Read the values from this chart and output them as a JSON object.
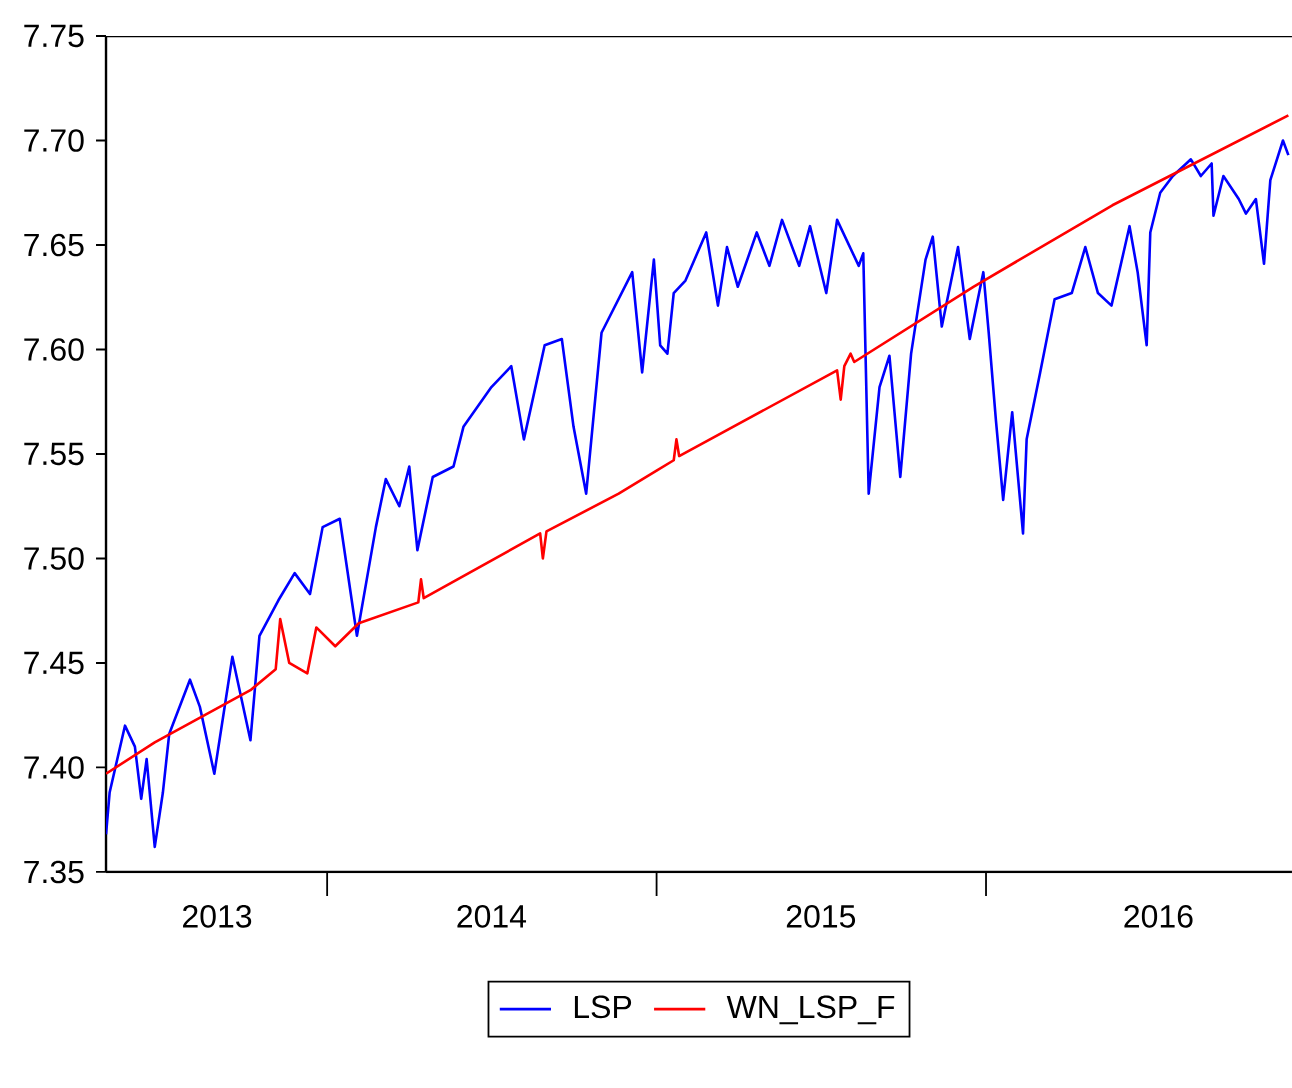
{
  "chart_data": {
    "type": "line",
    "line_style": "solid",
    "legend": "bottom",
    "grid": false,
    "xlim": [
      "2013-05-01",
      "2016-12-05"
    ],
    "xticks": [
      {
        "value": "2014-01-01",
        "label": null
      },
      {
        "value": "2015-01-01",
        "label": null
      },
      {
        "value": "2016-01-01",
        "label": null
      },
      {
        "value": "2013-09-01",
        "label": "2013"
      },
      {
        "value": "2014-07-02",
        "label": "2014"
      },
      {
        "value": "2015-07-02",
        "label": "2015"
      },
      {
        "value": "2016-07-10",
        "label": "2016"
      }
    ],
    "ylim": [
      7.35,
      7.75
    ],
    "yticks": [
      7.35,
      {
        "value": 7.4,
        "label": "7.40"
      },
      7.45,
      {
        "value": 7.5,
        "label": "7.50"
      },
      7.55,
      {
        "value": 7.6,
        "label": "7.60"
      },
      7.65,
      {
        "value": 7.7,
        "label": "7.70"
      },
      7.75
    ],
    "series": [
      {
        "name": "LSP",
        "color": "#0000ff",
        "x": [
          "2013-05-01",
          "2013-05-05",
          "2013-05-22",
          "2013-06-02",
          "2013-06-09",
          "2013-06-15",
          "2013-06-24",
          "2013-07-03",
          "2013-07-10",
          "2013-08-02",
          "2013-08-13",
          "2013-08-29",
          "2013-09-18",
          "2013-10-08",
          "2013-10-18",
          "2013-11-08",
          "2013-11-26",
          "2013-12-13",
          "2013-12-27",
          "2014-01-15",
          "2014-02-03",
          "2014-02-24",
          "2014-03-07",
          "2014-03-22",
          "2014-04-02",
          "2014-04-11",
          "2014-04-28",
          "2014-05-21",
          "2014-06-01",
          "2014-07-02",
          "2014-07-24",
          "2014-08-07",
          "2014-08-30",
          "2014-09-18",
          "2014-10-01",
          "2014-10-15",
          "2014-11-01",
          "2014-12-05",
          "2014-12-16",
          "2014-12-29",
          "2015-01-05",
          "2015-01-13",
          "2015-01-20",
          "2015-02-02",
          "2015-02-25",
          "2015-03-10",
          "2015-03-20",
          "2015-04-01",
          "2015-04-22",
          "2015-05-06",
          "2015-05-20",
          "2015-06-08",
          "2015-06-20",
          "2015-07-08",
          "2015-07-20",
          "2015-08-13",
          "2015-08-18",
          "2015-08-24",
          "2015-09-05",
          "2015-09-16",
          "2015-09-28",
          "2015-10-10",
          "2015-10-26",
          "2015-11-03",
          "2015-11-13",
          "2015-12-01",
          "2015-12-14",
          "2015-12-29",
          "2016-01-04",
          "2016-01-12",
          "2016-01-20",
          "2016-01-30",
          "2016-02-11",
          "2016-02-15",
          "2016-03-01",
          "2016-03-17",
          "2016-04-05",
          "2016-04-20",
          "2016-05-04",
          "2016-05-19",
          "2016-06-08",
          "2016-06-17",
          "2016-06-27",
          "2016-07-01",
          "2016-07-12",
          "2016-07-26",
          "2016-08-15",
          "2016-08-26",
          "2016-09-07",
          "2016-09-09",
          "2016-09-20",
          "2016-10-07",
          "2016-10-15",
          "2016-10-26",
          "2016-11-04",
          "2016-11-11",
          "2016-11-25",
          "2016-12-01"
        ],
        "values": [
          7.368,
          7.388,
          7.42,
          7.41,
          7.385,
          7.404,
          7.362,
          7.388,
          7.416,
          7.442,
          7.429,
          7.397,
          7.453,
          7.413,
          7.463,
          7.48,
          7.493,
          7.483,
          7.515,
          7.519,
          7.463,
          7.515,
          7.538,
          7.525,
          7.544,
          7.504,
          7.539,
          7.544,
          7.563,
          7.582,
          7.592,
          7.557,
          7.602,
          7.605,
          7.563,
          7.531,
          7.608,
          7.637,
          7.589,
          7.643,
          7.602,
          7.598,
          7.627,
          7.633,
          7.656,
          7.621,
          7.649,
          7.63,
          7.656,
          7.64,
          7.662,
          7.64,
          7.659,
          7.627,
          7.662,
          7.64,
          7.646,
          7.531,
          7.582,
          7.597,
          7.539,
          7.598,
          7.643,
          7.654,
          7.611,
          7.649,
          7.605,
          7.637,
          7.608,
          7.566,
          7.528,
          7.57,
          7.512,
          7.557,
          7.589,
          7.624,
          7.627,
          7.649,
          7.627,
          7.621,
          7.659,
          7.637,
          7.602,
          7.656,
          7.675,
          7.683,
          7.691,
          7.683,
          7.689,
          7.664,
          7.683,
          7.672,
          7.665,
          7.672,
          7.641,
          7.681,
          7.7,
          7.693
        ]
      },
      {
        "name": "WN_LSP_F",
        "color": "#ff0000",
        "x": [
          "2013-05-01",
          "2013-06-24",
          "2013-10-08",
          "2013-11-05",
          "2013-11-10",
          "2013-11-20",
          "2013-12-10",
          "2013-12-20",
          "2014-01-10",
          "2014-02-05",
          "2014-04-12",
          "2014-04-15",
          "2014-04-18",
          "2014-08-25",
          "2014-08-28",
          "2014-09-01",
          "2014-11-20",
          "2015-01-01",
          "2015-01-20",
          "2015-01-23",
          "2015-01-26",
          "2015-07-20",
          "2015-07-24",
          "2015-07-28",
          "2015-08-04",
          "2015-08-08",
          "2015-12-18",
          "2016-05-20",
          "2016-12-01"
        ],
        "values": [
          7.397,
          7.412,
          7.437,
          7.447,
          7.471,
          7.45,
          7.445,
          7.467,
          7.458,
          7.469,
          7.479,
          7.49,
          7.481,
          7.512,
          7.5,
          7.513,
          7.531,
          7.542,
          7.547,
          7.557,
          7.549,
          7.59,
          7.576,
          7.592,
          7.598,
          7.594,
          7.63,
          7.669,
          7.712
        ]
      }
    ]
  }
}
